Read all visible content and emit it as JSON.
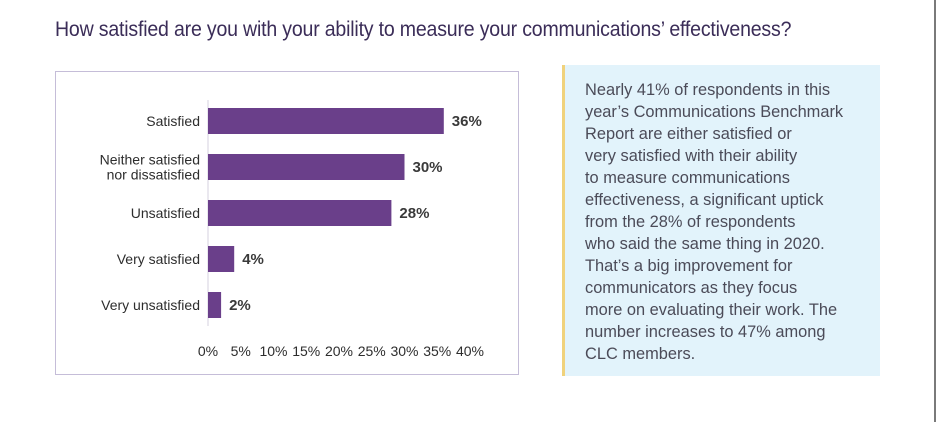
{
  "title": "How satisfied are you with your ability to measure your communications’ effectiveness?",
  "colors": {
    "bar": "#6a3f8a",
    "title": "#3b2d58",
    "panel_background": "#e2f3fb",
    "panel_accent": "#f0d27c",
    "chart_border": "#c5bdd8"
  },
  "chart_data": {
    "type": "bar",
    "orientation": "horizontal",
    "title": "How satisfied are you with your ability to measure your communications’ effectiveness?",
    "categories": [
      [
        "Satisfied"
      ],
      [
        "Neither satisfied",
        "nor dissatisfied"
      ],
      [
        "Unsatisfied"
      ],
      [
        "Very satisfied"
      ],
      [
        "Very unsatisfied"
      ]
    ],
    "values": [
      36,
      30,
      28,
      4,
      2
    ],
    "value_labels": [
      "36%",
      "30%",
      "28%",
      "4%",
      "2%"
    ],
    "xlabel": "",
    "ylabel": "",
    "xlim": [
      0,
      40
    ],
    "xticks": [
      0,
      5,
      10,
      15,
      20,
      25,
      30,
      35,
      40
    ],
    "xtick_labels": [
      "0%",
      "5%",
      "10%",
      "15%",
      "20%",
      "25%",
      "30%",
      "35%",
      "40%"
    ],
    "grid": false,
    "legend": "none"
  },
  "panel": {
    "lines": [
      "Nearly 41% of respondents in this",
      "year’s Communications Benchmark",
      "Report are either satisfied or",
      "very satisfied with their ability",
      "to measure communications",
      "effectiveness, a significant uptick",
      "from the 28% of respondents",
      "who said the same thing in 2020.",
      "That’s a big improvement for",
      "communicators as they focus",
      "more on evaluating their work. The",
      "number increases to 47% among",
      "CLC members."
    ]
  }
}
